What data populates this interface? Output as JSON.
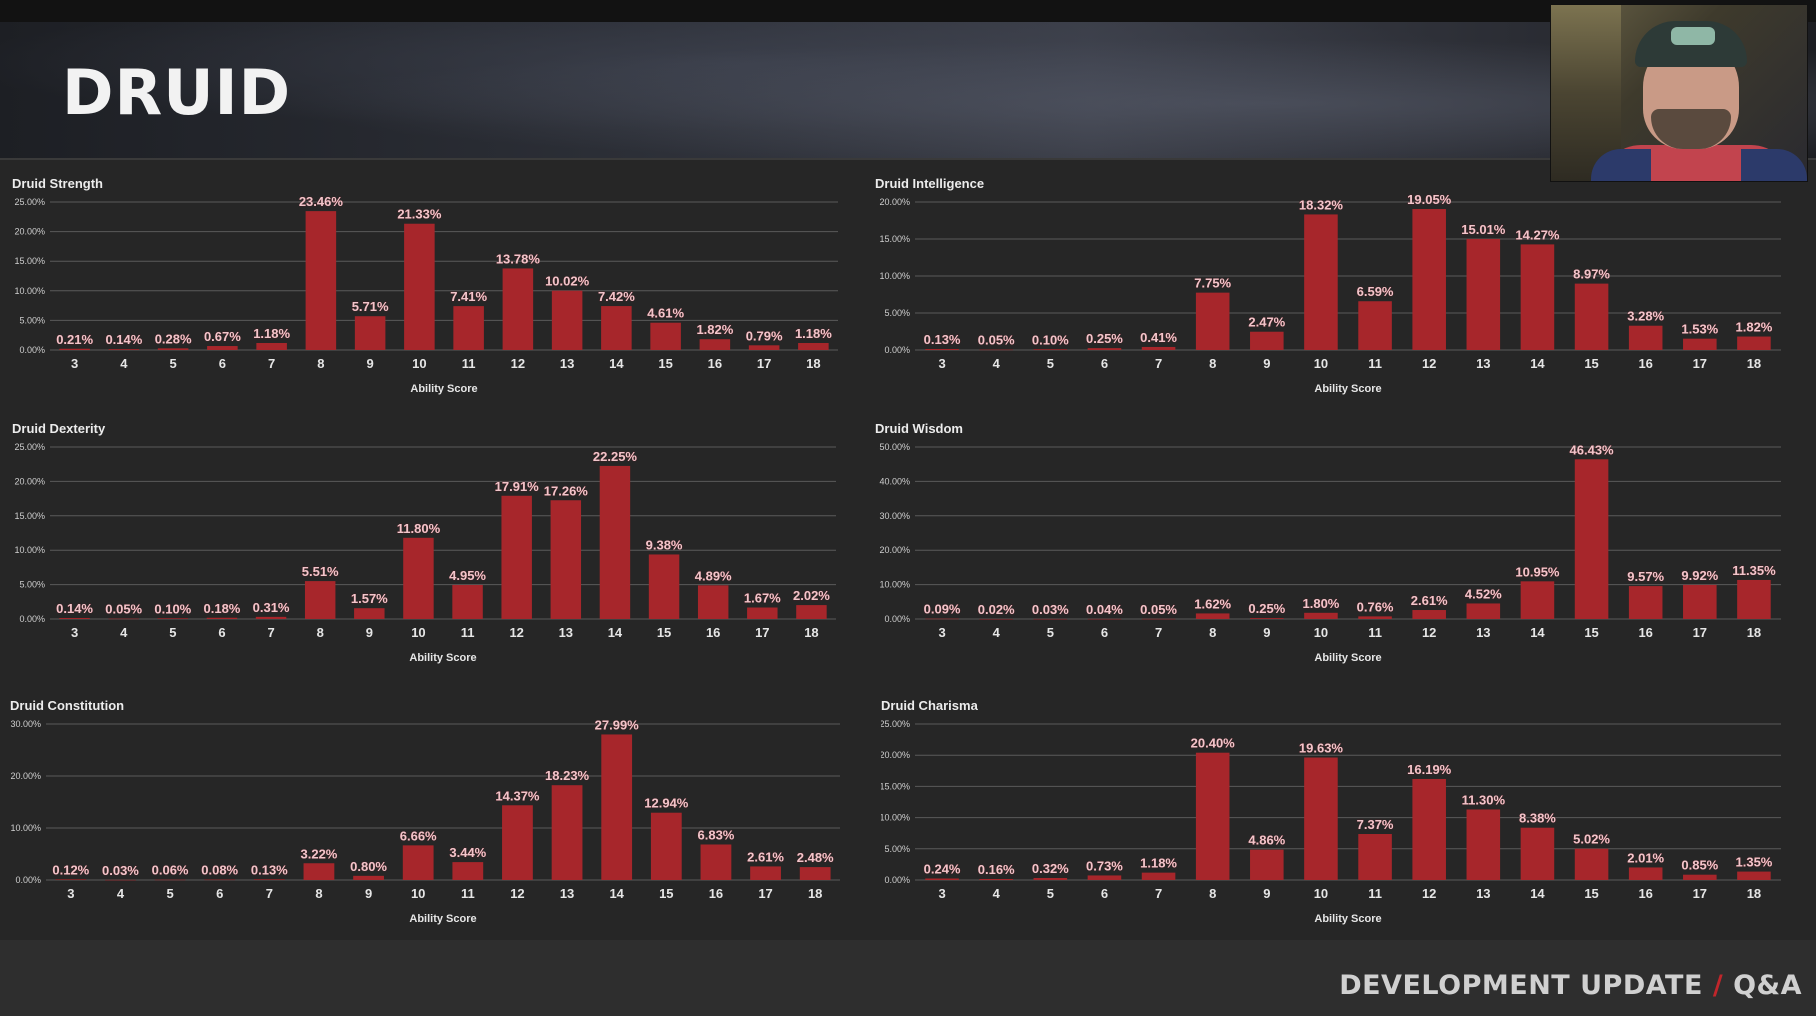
{
  "page": {
    "title": "DRUID",
    "footer": {
      "left": "DEVELOPMENT UPDATE",
      "sep": "/",
      "right": "Q&A"
    }
  },
  "colors": {
    "bar": "#a7262b",
    "label": "#f0c6cb",
    "grid": "#5a5a5a",
    "text": "#e6e6e6"
  },
  "chart_data": [
    {
      "type": "bar",
      "title": "Druid Strength",
      "xlabel": "Ability Score",
      "ylabel": "",
      "ylim": [
        0,
        25
      ],
      "yticks": [
        "0.00%",
        "5.00%",
        "10.00%",
        "15.00%",
        "20.00%",
        "25.00%"
      ],
      "categories": [
        "3",
        "4",
        "5",
        "6",
        "7",
        "8",
        "9",
        "10",
        "11",
        "12",
        "13",
        "14",
        "15",
        "16",
        "17",
        "18"
      ],
      "values": [
        0.21,
        0.14,
        0.28,
        0.67,
        1.18,
        23.46,
        5.71,
        21.33,
        7.41,
        13.78,
        10.02,
        7.42,
        4.61,
        1.82,
        0.79,
        1.18
      ],
      "labels": [
        "0.21%",
        "0.14%",
        "0.28%",
        "0.67%",
        "1.18%",
        "23.46%",
        "5.71%",
        "21.33%",
        "7.41%",
        "13.78%",
        "10.02%",
        "7.42%",
        "4.61%",
        "1.82%",
        "0.79%",
        "1.18%"
      ]
    },
    {
      "type": "bar",
      "title": "Druid Intelligence",
      "xlabel": "Ability Score",
      "ylabel": "",
      "ylim": [
        0,
        20
      ],
      "yticks": [
        "0.00%",
        "5.00%",
        "10.00%",
        "15.00%",
        "20.00%"
      ],
      "categories": [
        "3",
        "4",
        "5",
        "6",
        "7",
        "8",
        "9",
        "10",
        "11",
        "12",
        "13",
        "14",
        "15",
        "16",
        "17",
        "18"
      ],
      "values": [
        0.13,
        0.05,
        0.1,
        0.25,
        0.41,
        7.75,
        2.47,
        18.32,
        6.59,
        19.05,
        15.01,
        14.27,
        8.97,
        3.28,
        1.53,
        1.82
      ],
      "labels": [
        "0.13%",
        "0.05%",
        "0.10%",
        "0.25%",
        "0.41%",
        "7.75%",
        "2.47%",
        "18.32%",
        "6.59%",
        "19.05%",
        "15.01%",
        "14.27%",
        "8.97%",
        "3.28%",
        "1.53%",
        "1.82%"
      ]
    },
    {
      "type": "bar",
      "title": "Druid Dexterity",
      "xlabel": "Ability Score",
      "ylabel": "",
      "ylim": [
        0,
        25
      ],
      "yticks": [
        "0.00%",
        "5.00%",
        "10.00%",
        "15.00%",
        "20.00%",
        "25.00%"
      ],
      "categories": [
        "3",
        "4",
        "5",
        "6",
        "7",
        "8",
        "9",
        "10",
        "11",
        "12",
        "13",
        "14",
        "15",
        "16",
        "17",
        "18"
      ],
      "values": [
        0.14,
        0.05,
        0.1,
        0.18,
        0.31,
        5.51,
        1.57,
        11.8,
        4.95,
        17.91,
        17.26,
        22.25,
        9.38,
        4.89,
        1.67,
        2.02
      ],
      "labels": [
        "0.14%",
        "0.05%",
        "0.10%",
        "0.18%",
        "0.31%",
        "5.51%",
        "1.57%",
        "11.80%",
        "4.95%",
        "17.91%",
        "17.26%",
        "22.25%",
        "9.38%",
        "4.89%",
        "1.67%",
        "2.02%"
      ]
    },
    {
      "type": "bar",
      "title": "Druid Wisdom",
      "xlabel": "Ability Score",
      "ylabel": "",
      "ylim": [
        0,
        50
      ],
      "yticks": [
        "0.00%",
        "10.00%",
        "20.00%",
        "30.00%",
        "40.00%",
        "50.00%"
      ],
      "categories": [
        "3",
        "4",
        "5",
        "6",
        "7",
        "8",
        "9",
        "10",
        "11",
        "12",
        "13",
        "14",
        "15",
        "16",
        "17",
        "18"
      ],
      "values": [
        0.09,
        0.02,
        0.03,
        0.04,
        0.05,
        1.62,
        0.25,
        1.8,
        0.76,
        2.61,
        4.52,
        10.95,
        46.43,
        9.57,
        9.92,
        11.35
      ],
      "labels": [
        "0.09%",
        "0.02%",
        "0.03%",
        "0.04%",
        "0.05%",
        "1.62%",
        "0.25%",
        "1.80%",
        "0.76%",
        "2.61%",
        "4.52%",
        "10.95%",
        "46.43%",
        "9.57%",
        "9.92%",
        "11.35%"
      ]
    },
    {
      "type": "bar",
      "title": "Druid Constitution",
      "xlabel": "Ability Score",
      "ylabel": "",
      "ylim": [
        0,
        30
      ],
      "yticks": [
        "0.00%",
        "10.00%",
        "20.00%",
        "30.00%"
      ],
      "categories": [
        "3",
        "4",
        "5",
        "6",
        "7",
        "8",
        "9",
        "10",
        "11",
        "12",
        "13",
        "14",
        "15",
        "16",
        "17",
        "18"
      ],
      "values": [
        0.12,
        0.03,
        0.06,
        0.08,
        0.13,
        3.22,
        0.8,
        6.66,
        3.44,
        14.37,
        18.23,
        27.99,
        12.94,
        6.83,
        2.61,
        2.48
      ],
      "labels": [
        "0.12%",
        "0.03%",
        "0.06%",
        "0.08%",
        "0.13%",
        "3.22%",
        "0.80%",
        "6.66%",
        "3.44%",
        "14.37%",
        "18.23%",
        "27.99%",
        "12.94%",
        "6.83%",
        "2.61%",
        "2.48%"
      ]
    },
    {
      "type": "bar",
      "title": "Druid Charisma",
      "xlabel": "Ability Score",
      "ylabel": "",
      "ylim": [
        0,
        25
      ],
      "yticks": [
        "0.00%",
        "5.00%",
        "10.00%",
        "15.00%",
        "20.00%",
        "25.00%"
      ],
      "categories": [
        "3",
        "4",
        "5",
        "6",
        "7",
        "8",
        "9",
        "10",
        "11",
        "12",
        "13",
        "14",
        "15",
        "16",
        "17",
        "18"
      ],
      "values": [
        0.24,
        0.16,
        0.32,
        0.73,
        1.18,
        20.4,
        4.86,
        19.63,
        7.37,
        16.19,
        11.3,
        8.38,
        5.02,
        2.01,
        0.85,
        1.35
      ],
      "labels": [
        "0.24%",
        "0.16%",
        "0.32%",
        "0.73%",
        "1.18%",
        "20.40%",
        "4.86%",
        "19.63%",
        "7.37%",
        "16.19%",
        "11.30%",
        "8.38%",
        "5.02%",
        "2.01%",
        "0.85%",
        "1.35%"
      ]
    }
  ]
}
